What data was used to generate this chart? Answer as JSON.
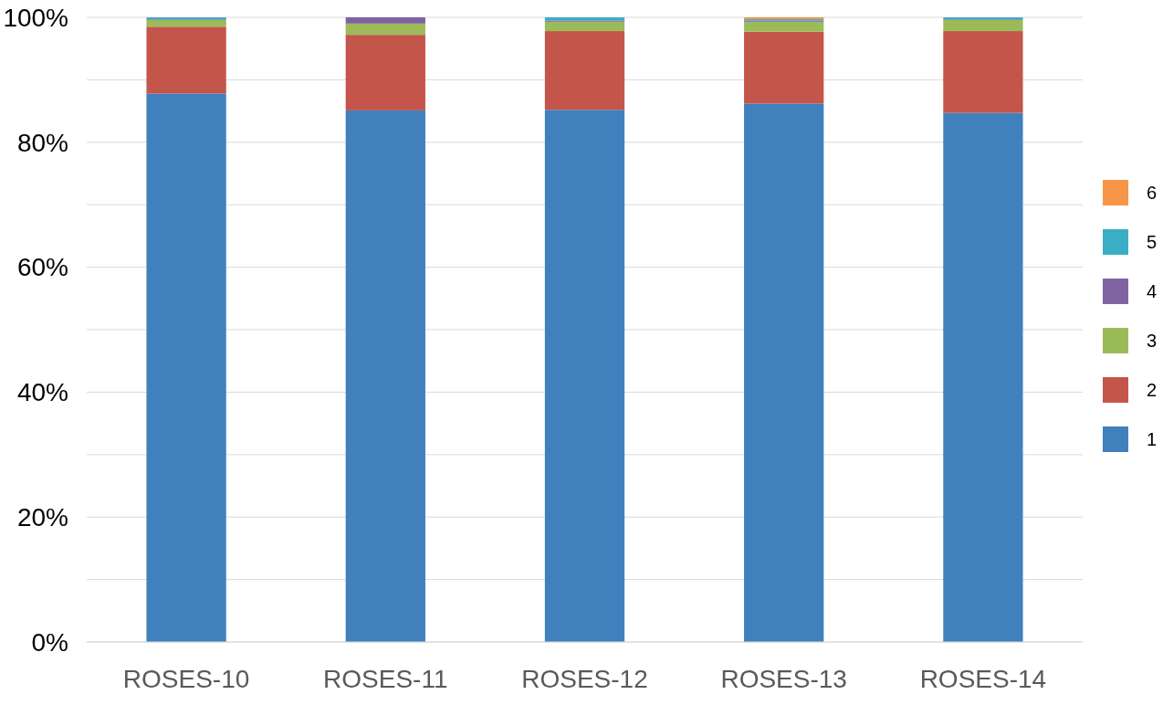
{
  "chart_data": {
    "type": "bar",
    "stacked": true,
    "categories": [
      "ROSES-10",
      "ROSES-11",
      "ROSES-12",
      "ROSES-13",
      "ROSES-14"
    ],
    "series": [
      {
        "name": "1",
        "color": "#4080bd",
        "values": [
          87.8,
          85.1,
          85.2,
          86.2,
          84.7
        ]
      },
      {
        "name": "2",
        "color": "#c4554a",
        "values": [
          10.7,
          12.1,
          12.6,
          11.5,
          13.1
        ]
      },
      {
        "name": "3",
        "color": "#9bbb59",
        "values": [
          1.1,
          1.8,
          1.5,
          1.6,
          1.8
        ]
      },
      {
        "name": "4",
        "color": "#8064a2",
        "values": [
          0.1,
          1.0,
          0.2,
          0.2,
          0.1
        ]
      },
      {
        "name": "5",
        "color": "#3aaec5",
        "values": [
          0.3,
          0,
          0.5,
          0.2,
          0.3
        ]
      },
      {
        "name": "6",
        "color": "#f79646",
        "values": [
          0,
          0,
          0,
          0.3,
          0
        ]
      }
    ],
    "ylim": [
      0,
      100
    ],
    "yticks": [
      {
        "value": 0,
        "label": "0%"
      },
      {
        "value": 10,
        "label": null
      },
      {
        "value": 20,
        "label": "20%"
      },
      {
        "value": 30,
        "label": null
      },
      {
        "value": 40,
        "label": "40%"
      },
      {
        "value": 50,
        "label": null
      },
      {
        "value": 60,
        "label": "60%"
      },
      {
        "value": 70,
        "label": null
      },
      {
        "value": 80,
        "label": "80%"
      },
      {
        "value": 90,
        "label": null
      },
      {
        "value": 100,
        "label": "100%"
      }
    ],
    "grid": "y",
    "legend": "right"
  }
}
